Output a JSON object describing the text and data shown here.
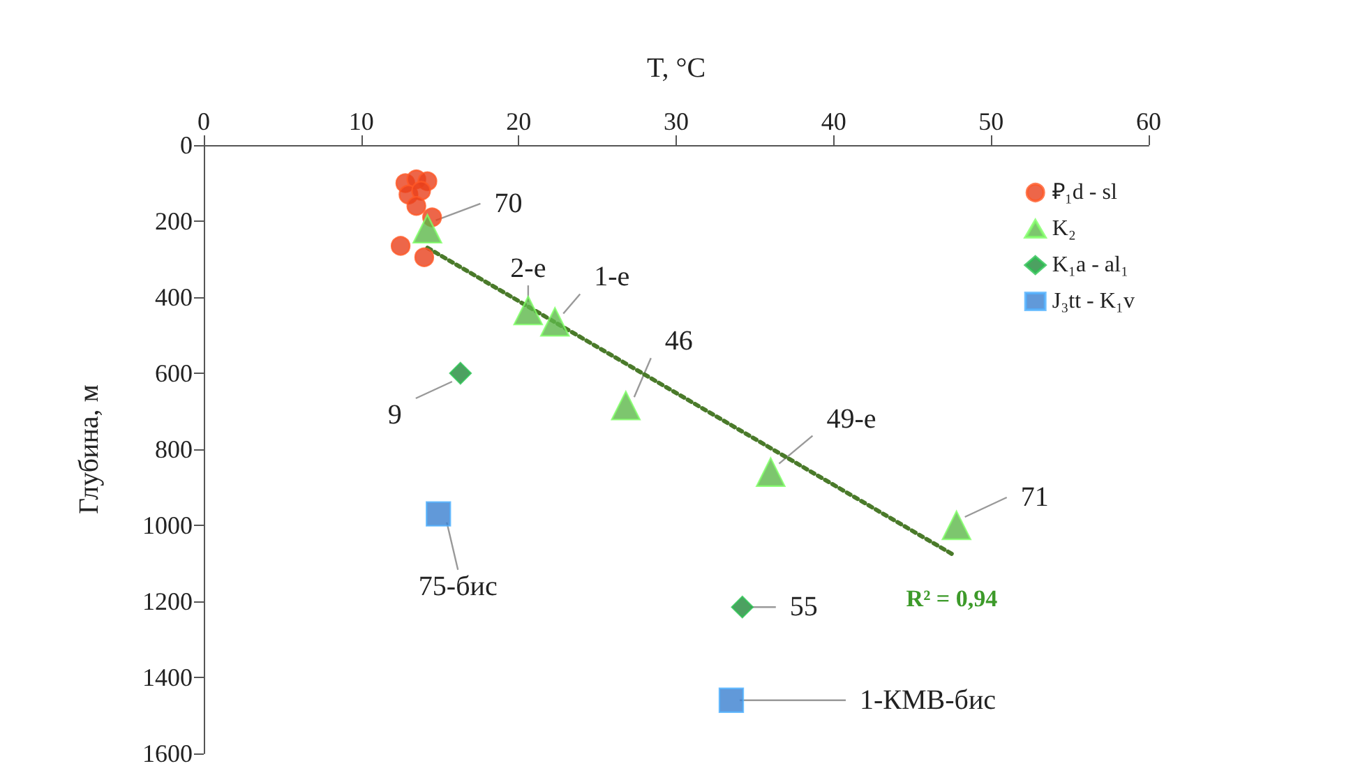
{
  "chart_data": {
    "type": "scatter",
    "xlabel": "T, °C",
    "ylabel": "Глубина, м",
    "xlim": [
      0,
      60
    ],
    "xticks": [
      0,
      10,
      20,
      30,
      40,
      50,
      60
    ],
    "ylim": [
      1600,
      0
    ],
    "yticks": [
      0,
      200,
      400,
      600,
      800,
      1000,
      1200,
      1400,
      1600
    ],
    "grid": false,
    "legend": "top right",
    "series": [
      {
        "name": "₽₁d - sl",
        "color": "#e8401c",
        "marker": "circle",
        "x": [
          12.8,
          13.5,
          14.2,
          13.0,
          13.8,
          13.5,
          14.5,
          12.5,
          14.0
        ],
        "values": [
          100,
          90,
          95,
          130,
          120,
          160,
          190,
          265,
          295
        ]
      },
      {
        "name": "K₂",
        "color": "#5cb84a",
        "marker": "triangle",
        "x": [
          14.2,
          20.6,
          22.3,
          26.8,
          36.0,
          47.8
        ],
        "values": [
          220,
          435,
          465,
          685,
          860,
          1000
        ]
      },
      {
        "name": "K₁a - al₁",
        "color": "#1f8a3a",
        "marker": "diamond",
        "x": [
          16.3,
          34.2
        ],
        "values": [
          600,
          1215
        ]
      },
      {
        "name": "J₃tt - K₁v",
        "color": "#3a7fd0",
        "marker": "square",
        "x": [
          14.9,
          33.5
        ],
        "values": [
          970,
          1460
        ]
      },
      {
        "type": "line",
        "color": "#4a7a2a",
        "marker": "none",
        "line_style": "dotted",
        "x": [
          14.2,
          47.5
        ],
        "values": [
          270,
          1075
        ]
      }
    ],
    "annotations": [
      {
        "text": "70",
        "x": 14.2,
        "y": 220
      },
      {
        "text": "2-e",
        "x": 20.6,
        "y": 435
      },
      {
        "text": "1-e",
        "x": 22.3,
        "y": 465
      },
      {
        "text": "46",
        "x": 26.8,
        "y": 685
      },
      {
        "text": "49-e",
        "x": 36.0,
        "y": 860
      },
      {
        "text": "71",
        "x": 47.8,
        "y": 1000
      },
      {
        "text": "9",
        "x": 16.3,
        "y": 600
      },
      {
        "text": "55",
        "x": 34.2,
        "y": 1215
      },
      {
        "text": "75-бис",
        "x": 14.9,
        "y": 970
      },
      {
        "text": "1-КМВ-бис",
        "x": 33.5,
        "y": 1460
      },
      "R² = 0,94"
    ]
  }
}
